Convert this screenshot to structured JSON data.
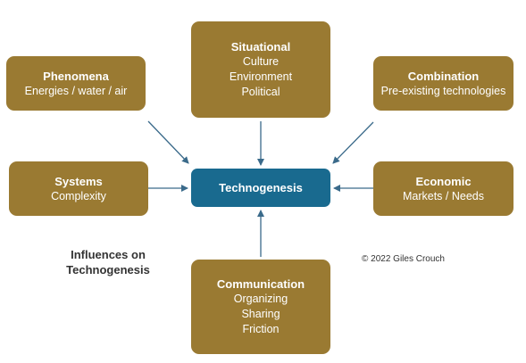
{
  "center": {
    "label": "Technogenesis"
  },
  "boxes": {
    "situational": {
      "title": "Situational",
      "lines": [
        "Culture",
        "Environment",
        "Political"
      ]
    },
    "phenomena": {
      "title": "Phenomena",
      "lines": [
        "Energies / water / air"
      ]
    },
    "combination": {
      "title": "Combination",
      "lines": [
        "Pre-existing technologies"
      ]
    },
    "systems": {
      "title": "Systems",
      "lines": [
        "Complexity"
      ]
    },
    "economic": {
      "title": "Economic",
      "lines": [
        "Markets / Needs"
      ]
    },
    "communication": {
      "title": "Communication",
      "lines": [
        "Organizing",
        "Sharing",
        "Friction"
      ]
    }
  },
  "caption": {
    "line1": "Influences on",
    "line2": "Technogenesis"
  },
  "copyright": "© 2022 Giles Crouch",
  "colors": {
    "box_fill": "#9a7a32",
    "center_fill": "#196a8f",
    "arrow": "#3a6a8a"
  }
}
